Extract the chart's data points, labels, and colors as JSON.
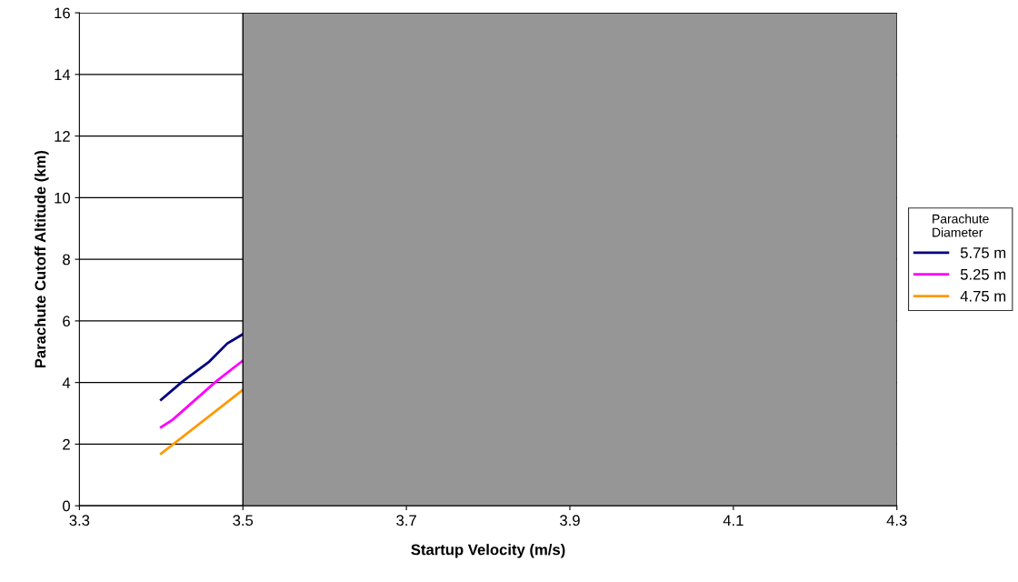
{
  "chart_data": {
    "type": "line",
    "xlabel": "Startup Velocity (m/s)",
    "ylabel": "Parachute Cutoff Altitude (km)",
    "legend_title": "Parachute\nDiameter",
    "xlim": [
      3.3,
      4.3
    ],
    "xticks": [
      3.3,
      3.5,
      3.7,
      3.9,
      4.1,
      4.3
    ],
    "ylim": [
      0,
      16
    ],
    "yticks": [
      0,
      2,
      4,
      6,
      8,
      10,
      12,
      14,
      16
    ],
    "grid": "y",
    "legend": "right",
    "marker": "none",
    "line_style": "solid",
    "series": [
      {
        "name": "5.75 m",
        "color": "#000080",
        "x": [
          3.4,
          3.426,
          3.459,
          3.481,
          3.5
        ],
        "values": [
          3.44,
          4.03,
          4.68,
          5.27,
          5.57
        ]
      },
      {
        "name": "5.25 m",
        "color": "#ff00ff",
        "x": [
          3.4,
          3.414,
          3.467,
          3.5
        ],
        "values": [
          2.55,
          2.79,
          4.03,
          4.71
        ]
      },
      {
        "name": "4.75 m",
        "color": "#ff9900",
        "x": [
          3.4,
          3.5
        ],
        "values": [
          1.69,
          3.76
        ]
      }
    ],
    "bands": [
      {
        "axis": "x",
        "from": 3.5,
        "to": 4.3,
        "color": "#969696"
      }
    ]
  }
}
